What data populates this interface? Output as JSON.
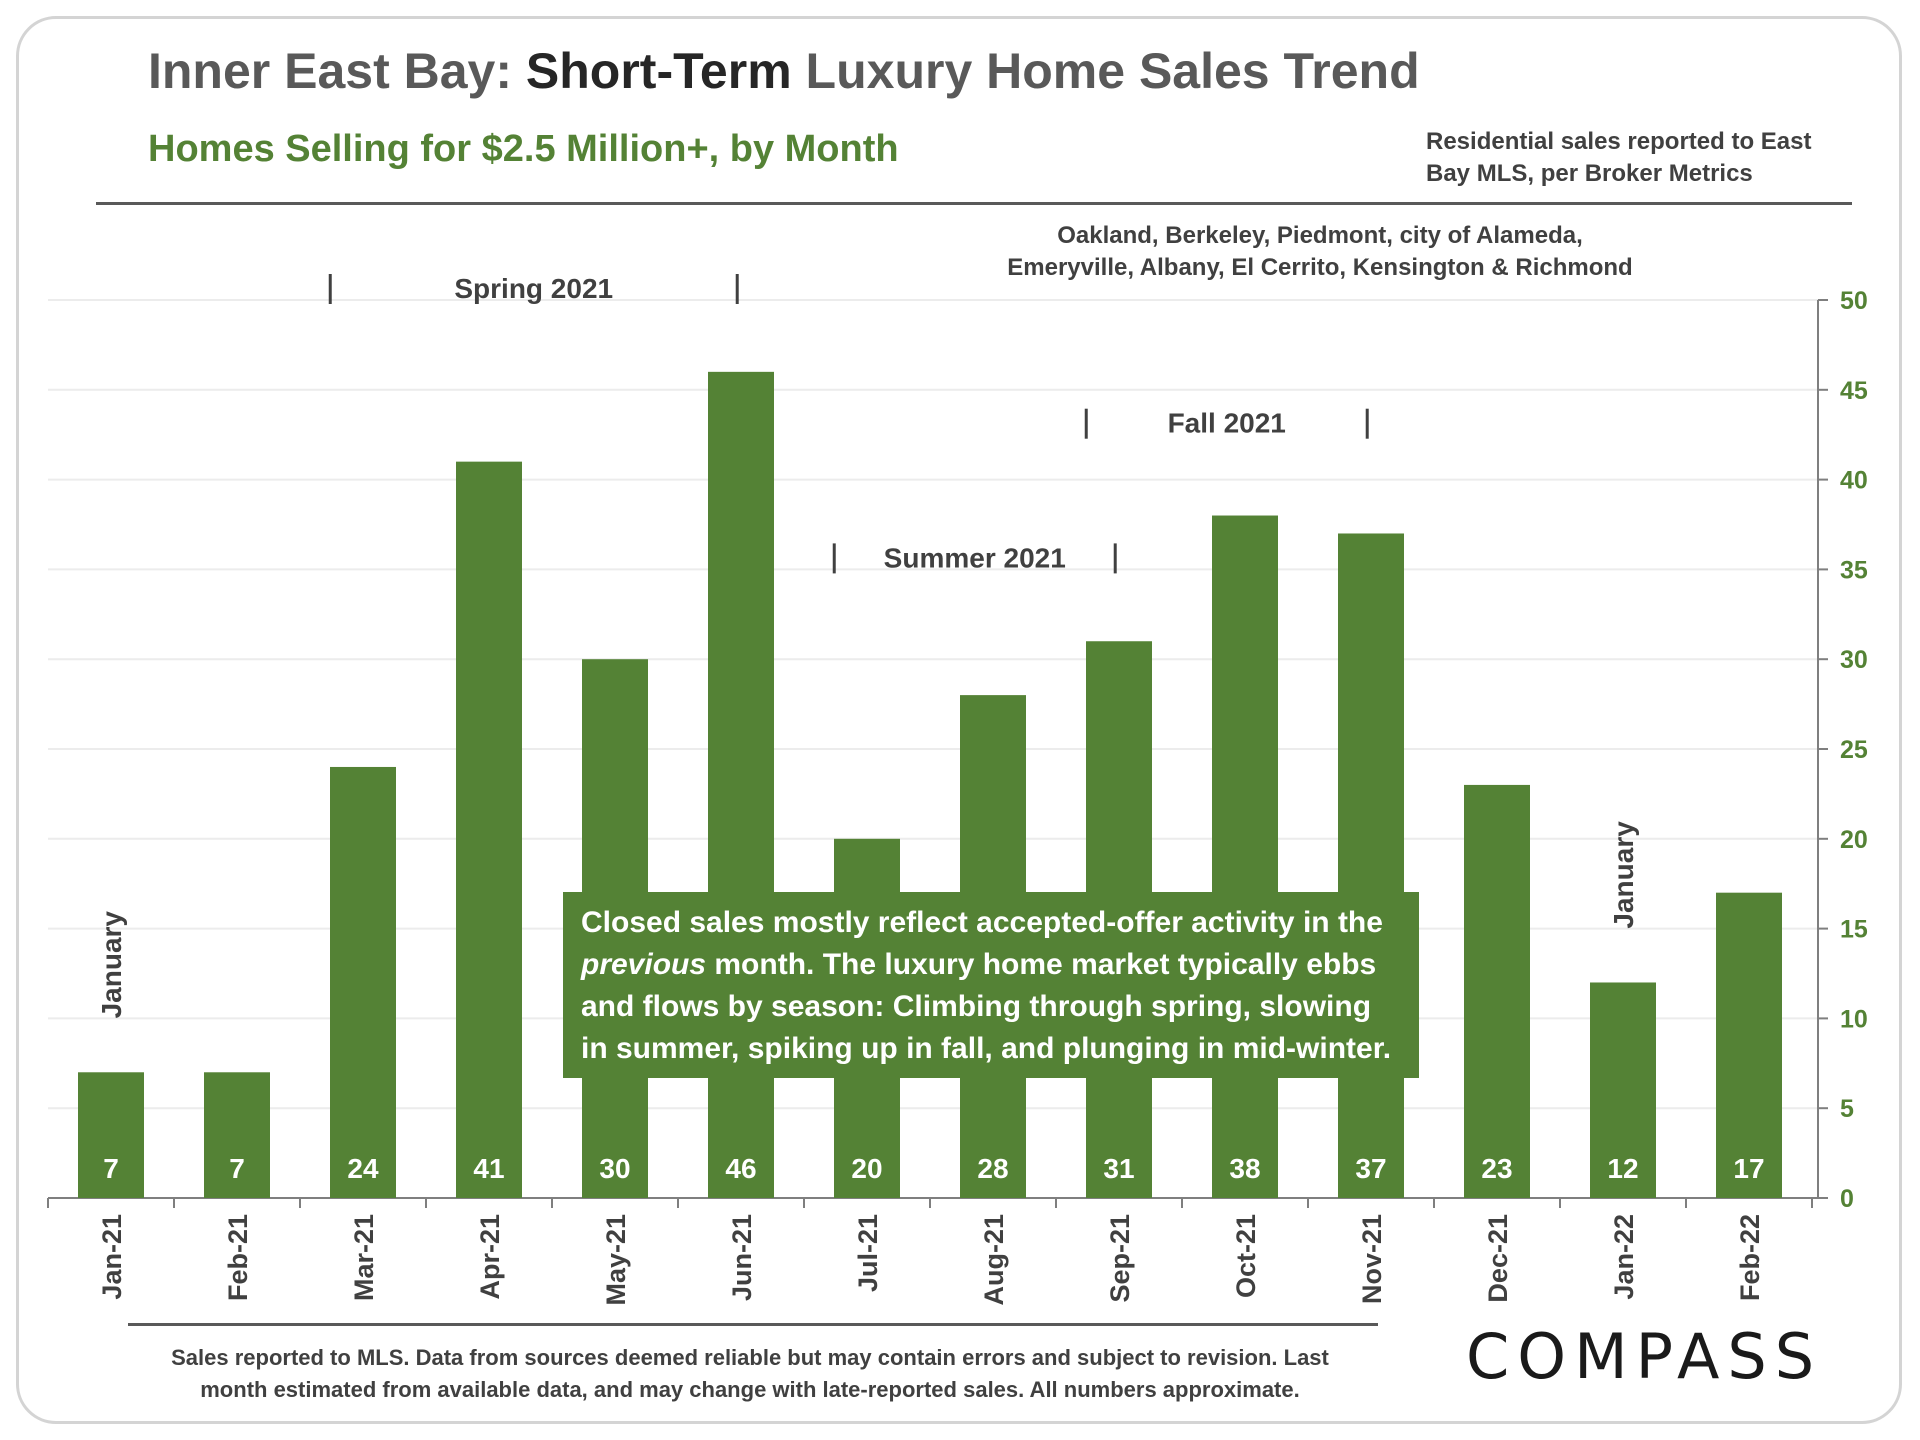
{
  "header": {
    "title_part1": "Inner East Bay: ",
    "title_part2": "Short-Term",
    "title_part3": " Luxury Home Sales Trend",
    "subtitle": "Homes Selling for $2.5 Million+, by Month",
    "source": "Residential sales reported to East Bay MLS, per Broker Metrics",
    "areas_line1": "Oakland, Berkeley, Piedmont, city of Alameda,",
    "areas_line2": "Emeryville, Albany, El Cerrito, Kensington & Richmond"
  },
  "note": {
    "part1": "Closed sales mostly reflect accepted-offer activity in the ",
    "italic": "previous",
    "part2": " month. The luxury home market typically ebbs and flows by season: Climbing through spring, slowing in summer, spiking up in fall, and plunging in mid-winter."
  },
  "footer": {
    "line1": "Sales reported to MLS. Data from sources deemed reliable but may contain errors and subject to revision.  Last",
    "line2": "month estimated from available data, and may change with late-reported sales. All numbers approximate."
  },
  "logo": "COMPASS",
  "chart_data": {
    "type": "bar",
    "categories": [
      "Jan-21",
      "Feb-21",
      "Mar-21",
      "Apr-21",
      "May-21",
      "Jun-21",
      "Jul-21",
      "Aug-21",
      "Sep-21",
      "Oct-21",
      "Nov-21",
      "Dec-21",
      "Jan-22",
      "Feb-22"
    ],
    "values": [
      7,
      7,
      24,
      41,
      30,
      46,
      20,
      28,
      31,
      38,
      37,
      23,
      12,
      17
    ],
    "title": "Inner East Bay: Short-Term Luxury Home Sales Trend",
    "ylim": [
      0,
      50
    ],
    "yticks": [
      0,
      5,
      10,
      15,
      20,
      25,
      30,
      35,
      40,
      45,
      50
    ],
    "y_axis_side": "right",
    "grid": true,
    "bar_color": "#548235",
    "seasons": [
      {
        "label": "Spring 2021",
        "start": "Mar-21",
        "end": "Jun-21",
        "level": 50
      },
      {
        "label": "Summer 2021",
        "start": "Jul-21",
        "end": "Sep-21",
        "level": 35
      },
      {
        "label": "Fall 2021",
        "start": "Sep-21",
        "end": "Nov-21",
        "level": 42.5
      }
    ],
    "month_markers": [
      {
        "label": "January",
        "category": "Jan-21",
        "at_value": 10
      },
      {
        "label": "January",
        "category": "Jan-22",
        "at_value": 15
      }
    ]
  }
}
